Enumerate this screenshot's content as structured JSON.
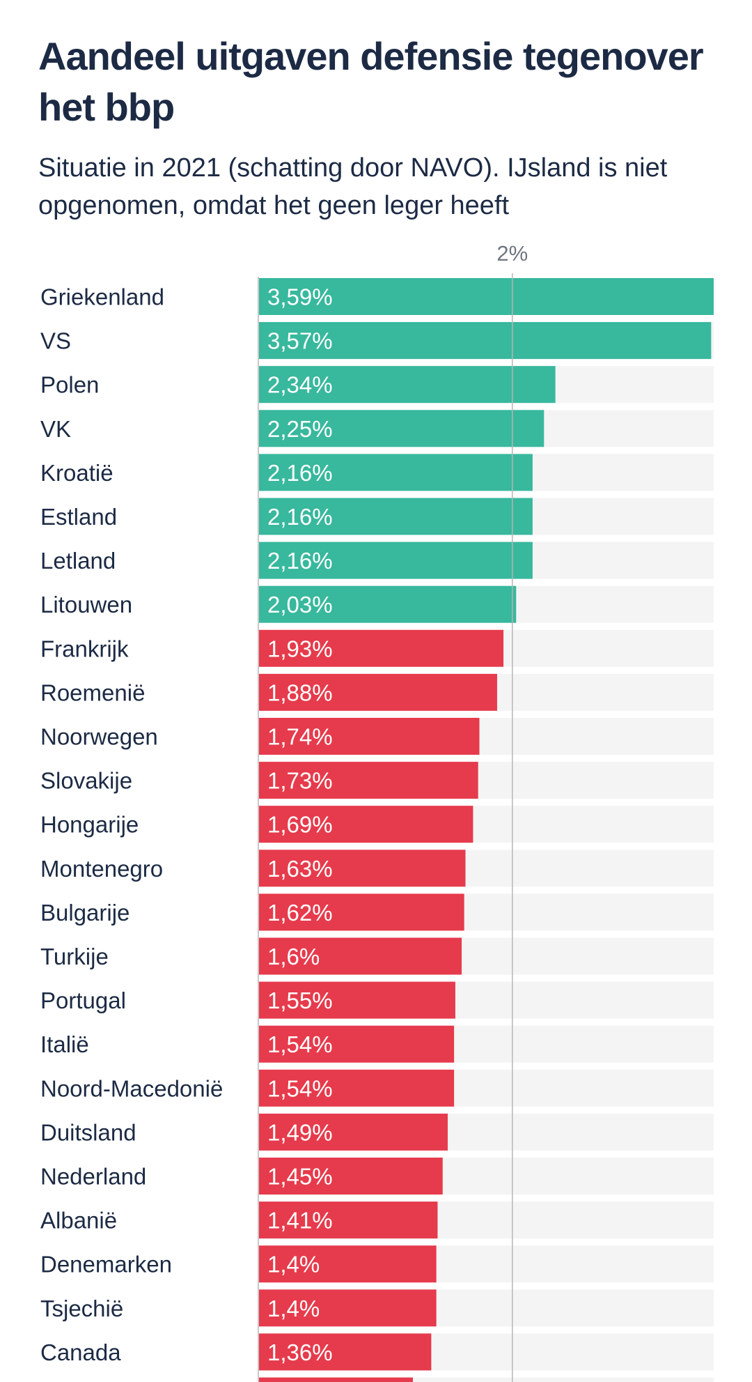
{
  "chart_data": {
    "type": "bar",
    "orientation": "horizontal",
    "title": "Aandeel uitgaven defensie tegenover het bbp",
    "subtitle": "Situatie in 2021 (schatting door NAVO). IJsland is niet opgenomen, omdat het geen leger heeft",
    "reference_line": {
      "value": 2,
      "label": "2%"
    },
    "xlim": [
      0,
      3.59
    ],
    "grid": false,
    "colors": {
      "above_2": "#38b89d",
      "below_2": "#e63b4c",
      "track": "#f4f4f4",
      "reference": "#b5b5b5",
      "axis": "#b5b5b5"
    },
    "categories": [
      "Griekenland",
      "VS",
      "Polen",
      "VK",
      "Kroatië",
      "Estland",
      "Letland",
      "Litouwen",
      "Frankrijk",
      "Roemenië",
      "Noorwegen",
      "Slovakije",
      "Hongarije",
      "Montenegro",
      "Bulgarije",
      "Turkije",
      "Portugal",
      "Italië",
      "Noord-Macedonië",
      "Duitsland",
      "Nederland",
      "Albanië",
      "Denemarken",
      "Tsjechië",
      "Canada"
    ],
    "values": [
      3.59,
      3.57,
      2.34,
      2.25,
      2.16,
      2.16,
      2.16,
      2.03,
      1.93,
      1.88,
      1.74,
      1.73,
      1.69,
      1.63,
      1.62,
      1.6,
      1.55,
      1.54,
      1.54,
      1.49,
      1.45,
      1.41,
      1.4,
      1.4,
      1.36
    ],
    "value_labels": [
      "3,59%",
      "3,57%",
      "2,34%",
      "2,25%",
      "2,16%",
      "2,16%",
      "2,16%",
      "2,03%",
      "1,93%",
      "1,88%",
      "1,74%",
      "1,73%",
      "1,69%",
      "1,63%",
      "1,62%",
      "1,6%",
      "1,55%",
      "1,54%",
      "1,54%",
      "1,49%",
      "1,45%",
      "1,41%",
      "1,4%",
      "1,4%",
      "1,36%"
    ]
  }
}
